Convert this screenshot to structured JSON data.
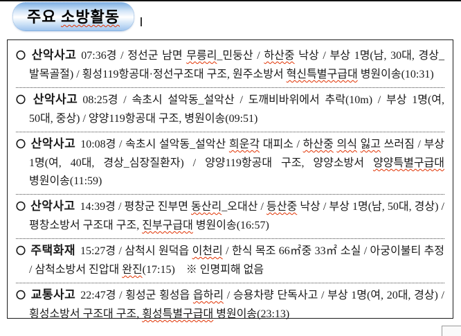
{
  "header": {
    "badge_label_plain": "주요 ",
    "badge_label_underlined": "소방활동"
  },
  "items": [
    {
      "bullet": "〇",
      "category": "산악사고",
      "segments": [
        {
          "text": "07:36경  /  정선군 남면 "
        },
        {
          "text": "무릉리",
          "wavy": true
        },
        {
          "text": "_민둥산  /  "
        },
        {
          "text": "하산중",
          "wavy": true
        },
        {
          "text": " 낙상  /  부상 1명(남, 30대, 경상_발목골절)  /  횡성119항공대·정선구조대 구조, 원주소방서 "
        },
        {
          "text": "혁신특별구급대",
          "wavy": true
        },
        {
          "text": " 병원이송(10:31)"
        }
      ]
    },
    {
      "bullet": "〇",
      "category": "산악사고",
      "segments": [
        {
          "text": "08:25경  /  속초시 설악동_설악산  /  도깨비바위에서 추락(10m)  /  부상 1명(여, 50대, 중상)  /  양양119항공대 구조, 병원이송(09:51)"
        }
      ]
    },
    {
      "bullet": "〇",
      "category": "산악사고",
      "segments": [
        {
          "text": "10:08경  /  속초시 설악동_설악산 "
        },
        {
          "text": "희운각",
          "wavy": true
        },
        {
          "text": " 대피소  /  "
        },
        {
          "text": "하산중",
          "wavy": true
        },
        {
          "text": " "
        },
        {
          "text": "의식",
          "wavy": true
        },
        {
          "text": " "
        },
        {
          "text": "잃고",
          "wavy": true
        },
        {
          "text": " 쓰러짐  /  부상 1명(여, 40대, 경상_심장질환자)  /  양양119항공대 구조, 양양소방서 "
        },
        {
          "text": "양양특별구급대",
          "wavy": true
        },
        {
          "text": " 병원이송(11:59)"
        }
      ]
    },
    {
      "bullet": "〇",
      "category": "산악사고",
      "segments": [
        {
          "text": "14:39경  /  평창군 진부면 "
        },
        {
          "text": "동산리",
          "wavy": true
        },
        {
          "text": "_오대산  /  "
        },
        {
          "text": "등산중",
          "wavy": true
        },
        {
          "text": " 낙상  /  부상 1명(남, 50대, 경상)  /  평창소방서 구조대 구조, "
        },
        {
          "text": "진부구급대",
          "wavy": true
        },
        {
          "text": " 병원이송(16:57)"
        }
      ]
    },
    {
      "bullet": "〇",
      "category": "주택화재",
      "segments": [
        {
          "text": "15:27경  /  삼척시 원덕읍 "
        },
        {
          "text": "이천리",
          "wavy": true
        },
        {
          "text": "  /  한식 목조 66㎡중 33㎡ 소실  /  아궁이불티 추정  /  삼척소방서 진압대 "
        },
        {
          "text": "완진",
          "wavy": true
        },
        {
          "text": "(17:15) ※ 인명피해 없음"
        }
      ]
    },
    {
      "bullet": "〇",
      "category": "교통사고",
      "segments": [
        {
          "text": "22:47경  /  횡성군 횡성읍 "
        },
        {
          "text": "읍하리",
          "wavy": true
        },
        {
          "text": "  /  승용차량 단독사고  /  부상 1명(여, 20대, 경상)  /  횡성소방서 구조대 구조, "
        },
        {
          "text": "횡성특별구급대",
          "wavy": true
        },
        {
          "text": " 병원이송(23:13)"
        }
      ]
    }
  ],
  "colors": {
    "badge_gradient_top": "#7fb0e4",
    "badge_gradient_middle": "#ffffff",
    "badge_gradient_bottom": "#9fc4ee",
    "badge_border": "#8fb4dd",
    "spellcheck_underline": "#e03000",
    "box_border": "#1a1a1a"
  }
}
